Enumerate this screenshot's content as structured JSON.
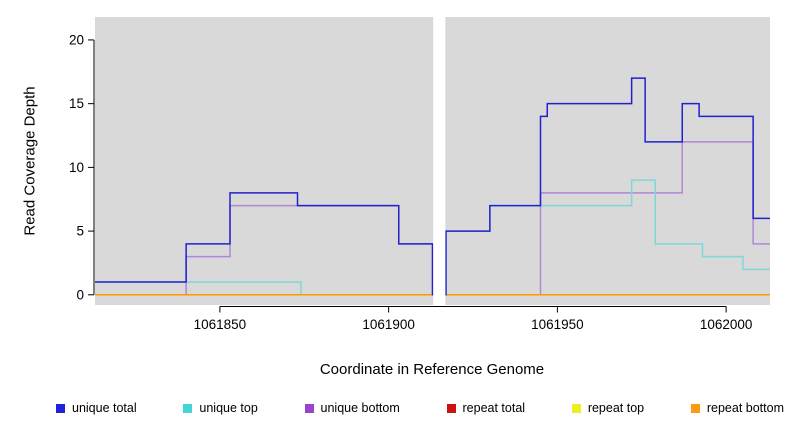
{
  "chart_data": {
    "type": "line",
    "subtype": "step-coverage-plot",
    "title": "",
    "xlabel": "Coordinate in Reference Genome",
    "ylabel": "Read Coverage Depth",
    "xlim": [
      1061813,
      1062013
    ],
    "ylim": [
      -0.8,
      21.8
    ],
    "xticks": [
      1061850,
      1061900,
      1061950,
      1062000
    ],
    "yticks": [
      0,
      5,
      10,
      15,
      20
    ],
    "plot_background": "#d9d9d9",
    "gap": {
      "from": 1061913.2,
      "to": 1061916.8,
      "color": "#ffffff"
    },
    "series": [
      {
        "name": "unique bottom",
        "color": "#b386d8",
        "points": [
          [
            1061813,
            0
          ],
          [
            1061840,
            3
          ],
          [
            1061853,
            7
          ],
          [
            1061903,
            4
          ],
          [
            1061913,
            0
          ],
          [
            1061945,
            8
          ],
          [
            1061987,
            12
          ],
          [
            1062008,
            4
          ]
        ]
      },
      {
        "name": "unique top",
        "color": "#7fd8d8",
        "points": [
          [
            1061813,
            1
          ],
          [
            1061874,
            0
          ],
          [
            1061913,
            0
          ],
          [
            1061917,
            5
          ],
          [
            1061930,
            7
          ],
          [
            1061972,
            9
          ],
          [
            1061979,
            4
          ],
          [
            1061993,
            3
          ],
          [
            1062005,
            2
          ]
        ]
      },
      {
        "name": "repeat total",
        "color": "#cc2222",
        "points": [
          [
            1061813,
            0
          ]
        ]
      },
      {
        "name": "repeat top",
        "color": "#e8e822",
        "points": [
          [
            1061813,
            0
          ]
        ]
      },
      {
        "name": "repeat bottom",
        "color": "#ff9900",
        "points": [
          [
            1061813,
            0
          ]
        ]
      },
      {
        "name": "unique total",
        "color": "#2222cc",
        "points": [
          [
            1061813,
            1
          ],
          [
            1061840,
            4
          ],
          [
            1061853,
            8
          ],
          [
            1061873,
            7
          ],
          [
            1061903,
            4
          ],
          [
            1061913,
            0
          ],
          [
            1061917,
            5
          ],
          [
            1061930,
            7
          ],
          [
            1061945,
            14
          ],
          [
            1061947,
            15
          ],
          [
            1061972,
            17
          ],
          [
            1061976,
            12
          ],
          [
            1061987,
            15
          ],
          [
            1061992,
            14
          ],
          [
            1062008,
            6
          ]
        ]
      }
    ]
  },
  "legend": {
    "items": [
      {
        "label": "unique total",
        "color": "#2222dd"
      },
      {
        "label": "unique top",
        "color": "#44d6d6"
      },
      {
        "label": "unique bottom",
        "color": "#9944cc"
      },
      {
        "label": "repeat total",
        "color": "#cc1111"
      },
      {
        "label": "repeat top",
        "color": "#eeee22"
      },
      {
        "label": "repeat bottom",
        "color": "#ff9911"
      }
    ]
  }
}
